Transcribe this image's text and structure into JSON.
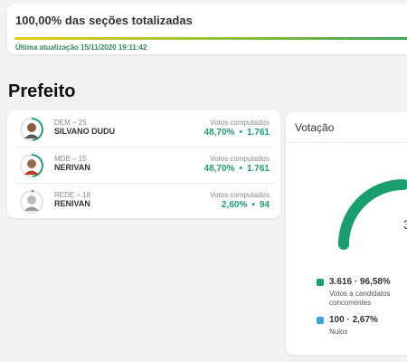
{
  "status": {
    "title": "100,00% das seções totalizadas",
    "progress_fraction": 1.0,
    "updated": "Última atualização 15/11/2020 19:11:42"
  },
  "section": {
    "title": "Prefeito"
  },
  "candidates": [
    {
      "party": "DEM – 25",
      "name": "SILVANO DUDU",
      "votes_label": "Votos computados",
      "percent": "48,70%",
      "votes": "1.761",
      "ring_fraction": 0.487
    },
    {
      "party": "MDB – 15",
      "name": "NERIVAN",
      "votes_label": "Votos computados",
      "percent": "48,70%",
      "votes": "1.761",
      "ring_fraction": 0.487
    },
    {
      "party": "REDE – 18",
      "name": "RENIVAN",
      "votes_label": "Votos computados",
      "percent": "2,60%",
      "votes": "94",
      "ring_fraction": 0.026
    }
  ],
  "votacao": {
    "title": "Votação",
    "center_text": "3",
    "legend": [
      {
        "value": "3.616 · 96,58%",
        "label": "Votos a candidatos concorrentes",
        "color": "#1a9e6e"
      },
      {
        "value": "100 · 2,67%",
        "label": "Nulos",
        "color": "#3aa6e0"
      }
    ]
  },
  "colors": {
    "accent_green": "#1a9e6e",
    "blue": "#3aa6e0"
  }
}
